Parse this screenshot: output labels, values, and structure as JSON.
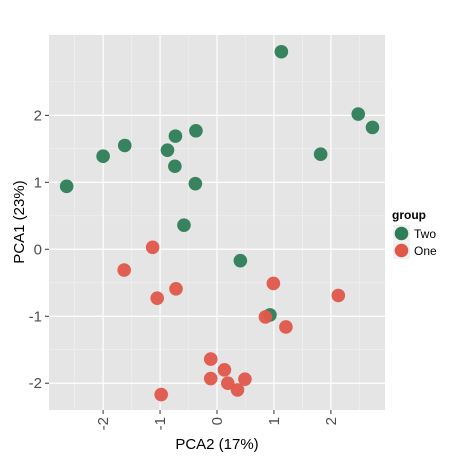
{
  "chart_data": {
    "type": "scatter",
    "title": "",
    "xlabel": "PCA2 (17%)",
    "ylabel": "PCA1 (23%)",
    "xlim": [
      -2.95,
      2.95
    ],
    "ylim": [
      -2.4,
      3.2
    ],
    "xticks": [
      -2,
      -1,
      0,
      1,
      2
    ],
    "yticks": [
      -2,
      -1,
      0,
      1,
      2
    ],
    "xtick_labels": [
      "-2",
      "-1",
      "0",
      "1",
      "2"
    ],
    "ytick_labels": [
      "-2",
      "-1",
      "0",
      "1",
      "2"
    ],
    "grid": true,
    "legend": {
      "title": "group",
      "position": "right"
    },
    "series": [
      {
        "name": "Two",
        "color": "#2e7d57",
        "points": [
          [
            1.13,
            2.95
          ],
          [
            2.48,
            2.02
          ],
          [
            2.73,
            1.82
          ],
          [
            1.82,
            1.42
          ],
          [
            -2.64,
            0.94
          ],
          [
            -2.0,
            1.39
          ],
          [
            -1.62,
            1.55
          ],
          [
            -0.37,
            1.77
          ],
          [
            -0.73,
            1.69
          ],
          [
            -0.87,
            1.48
          ],
          [
            -0.74,
            1.24
          ],
          [
            -0.38,
            0.98
          ],
          [
            -0.58,
            0.36
          ],
          [
            0.41,
            -0.17
          ],
          [
            0.93,
            -0.98
          ]
        ]
      },
      {
        "name": "One",
        "color": "#e0574a",
        "points": [
          [
            -1.13,
            0.03
          ],
          [
            -1.63,
            -0.31
          ],
          [
            -1.05,
            -0.73
          ],
          [
            -0.72,
            -0.59
          ],
          [
            0.99,
            -0.51
          ],
          [
            2.13,
            -0.69
          ],
          [
            0.85,
            -1.01
          ],
          [
            1.21,
            -1.16
          ],
          [
            -0.11,
            -1.64
          ],
          [
            0.13,
            -1.8
          ],
          [
            -0.11,
            -1.93
          ],
          [
            0.19,
            -2.0
          ],
          [
            0.49,
            -1.94
          ],
          [
            0.36,
            -2.1
          ],
          [
            -0.98,
            -2.17
          ]
        ]
      }
    ]
  }
}
